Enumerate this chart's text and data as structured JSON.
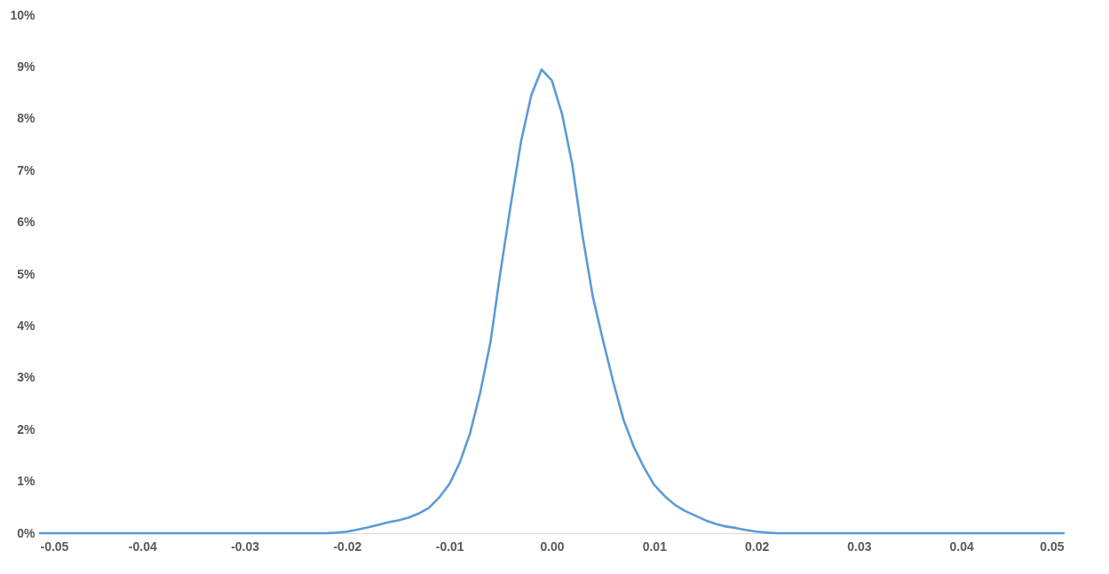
{
  "chart_data": {
    "type": "line",
    "x": [
      -0.05,
      -0.049,
      -0.048,
      -0.047,
      -0.046,
      -0.045,
      -0.044,
      -0.043,
      -0.042,
      -0.041,
      -0.04,
      -0.039,
      -0.038,
      -0.037,
      -0.036,
      -0.035,
      -0.034,
      -0.033,
      -0.032,
      -0.031,
      -0.03,
      -0.029,
      -0.028,
      -0.027,
      -0.026,
      -0.025,
      -0.024,
      -0.023,
      -0.022,
      -0.021,
      -0.02,
      -0.019,
      -0.018,
      -0.017,
      -0.016,
      -0.015,
      -0.014,
      -0.013,
      -0.012,
      -0.011,
      -0.01,
      -0.009,
      -0.008,
      -0.007,
      -0.006,
      -0.005,
      -0.004,
      -0.003,
      -0.002,
      -0.001,
      0,
      0.001,
      0.002,
      0.003,
      0.004,
      0.005,
      0.006,
      0.007,
      0.008,
      0.009,
      0.01,
      0.011,
      0.012,
      0.013,
      0.014,
      0.015,
      0.016,
      0.017,
      0.018,
      0.019,
      0.02,
      0.021,
      0.022,
      0.023,
      0.024,
      0.025,
      0.026,
      0.027,
      0.028,
      0.029,
      0.03,
      0.031,
      0.032,
      0.033,
      0.034,
      0.035,
      0.036,
      0.037,
      0.038,
      0.039,
      0.04,
      0.041,
      0.042,
      0.043,
      0.044,
      0.045,
      0.046,
      0.047,
      0.048,
      0.049,
      0.05
    ],
    "series": [
      {
        "color": "#5b9bd5",
        "values": [
          0,
          0,
          0,
          0,
          0,
          0,
          0,
          0,
          0,
          0,
          0,
          0,
          0,
          0,
          0,
          0,
          0,
          0,
          0,
          0,
          0,
          0,
          0,
          0,
          0,
          0,
          0,
          0,
          0,
          0.01,
          0.03,
          0.07,
          0.11,
          0.16,
          0.21,
          0.25,
          0.3,
          0.38,
          0.49,
          0.69,
          0.95,
          1.36,
          1.92,
          2.71,
          3.68,
          5.07,
          6.35,
          7.57,
          8.46,
          8.95,
          8.74,
          8.09,
          7.11,
          5.74,
          4.57,
          3.72,
          2.92,
          2.19,
          1.67,
          1.27,
          0.93,
          0.72,
          0.55,
          0.43,
          0.34,
          0.25,
          0.18,
          0.13,
          0.1,
          0.06,
          0.03,
          0.01,
          0,
          0,
          0,
          0,
          0,
          0,
          0,
          0,
          0,
          0,
          0,
          0,
          0,
          0,
          0,
          0,
          0,
          0,
          0,
          0,
          0,
          0,
          0,
          0,
          0,
          0,
          0,
          0,
          0
        ]
      }
    ],
    "xlim": [
      -0.05,
      0.05
    ],
    "xticks": [
      -0.05,
      -0.04,
      -0.03,
      -0.02,
      -0.01,
      {
        "value": 0,
        "label": "0.00"
      },
      0.01,
      0.02,
      0.03,
      0.04,
      0.05
    ],
    "ylim": [
      0,
      10
    ],
    "yticks": [
      {
        "value": 0,
        "label": "0%"
      },
      {
        "value": 1,
        "label": "1%"
      },
      {
        "value": 2,
        "label": "2%"
      },
      {
        "value": 3,
        "label": "3%"
      },
      {
        "value": 4,
        "label": "4%"
      },
      {
        "value": 5,
        "label": "5%"
      },
      {
        "value": 6,
        "label": "6%"
      },
      {
        "value": 7,
        "label": "7%"
      },
      {
        "value": 8,
        "label": "8%"
      },
      {
        "value": 9,
        "label": "9%"
      },
      {
        "value": 10,
        "label": "10%"
      }
    ],
    "grid": false,
    "marker": "none",
    "line_style": "solid"
  }
}
